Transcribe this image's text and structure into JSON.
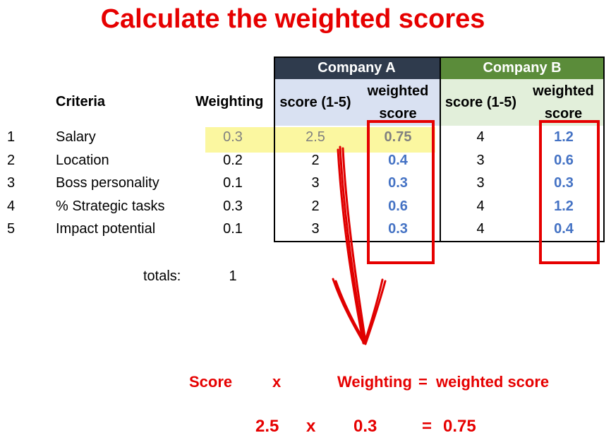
{
  "title": "Calculate the weighted scores",
  "table": {
    "criteria_header": "Criteria",
    "weighting_header": "Weighting",
    "company_a": "Company A",
    "company_b": "Company B",
    "score_header": "score (1-5)",
    "weighted_header_1": "weighted",
    "weighted_header_2": "score",
    "rows": [
      {
        "num": "1",
        "criterion": "Salary",
        "weight": "0.3",
        "a_score": "2.5",
        "a_weighted": "0.75",
        "b_score": "4",
        "b_weighted": "1.2"
      },
      {
        "num": "2",
        "criterion": "Location",
        "weight": "0.2",
        "a_score": "2",
        "a_weighted": "0.4",
        "b_score": "3",
        "b_weighted": "0.6"
      },
      {
        "num": "3",
        "criterion": "Boss personality",
        "weight": "0.1",
        "a_score": "3",
        "a_weighted": "0.3",
        "b_score": "3",
        "b_weighted": "0.3"
      },
      {
        "num": "4",
        "criterion": "% Strategic tasks",
        "weight": "0.3",
        "a_score": "2",
        "a_weighted": "0.6",
        "b_score": "4",
        "b_weighted": "1.2"
      },
      {
        "num": "5",
        "criterion": "Impact potential",
        "weight": "0.1",
        "a_score": "3",
        "a_weighted": "0.3",
        "b_score": "4",
        "b_weighted": "0.4"
      }
    ],
    "totals_label": "totals:",
    "totals_value": "1"
  },
  "formula": {
    "score": "Score",
    "times": "x",
    "weighting": "Weighting",
    "equals": "=",
    "weighted_score": "weighted score",
    "ex_score": "2.5",
    "ex_times": "x",
    "ex_weight": "0.3",
    "ex_equals": "=",
    "ex_result": "0.75"
  },
  "colors": {
    "title_red": "#e60000",
    "company_a_header": "#2f3b4d",
    "company_b_header": "#5b8c3a",
    "weighted_blue": "#4472c4",
    "highlight_yellow": "#fbf7a0"
  }
}
